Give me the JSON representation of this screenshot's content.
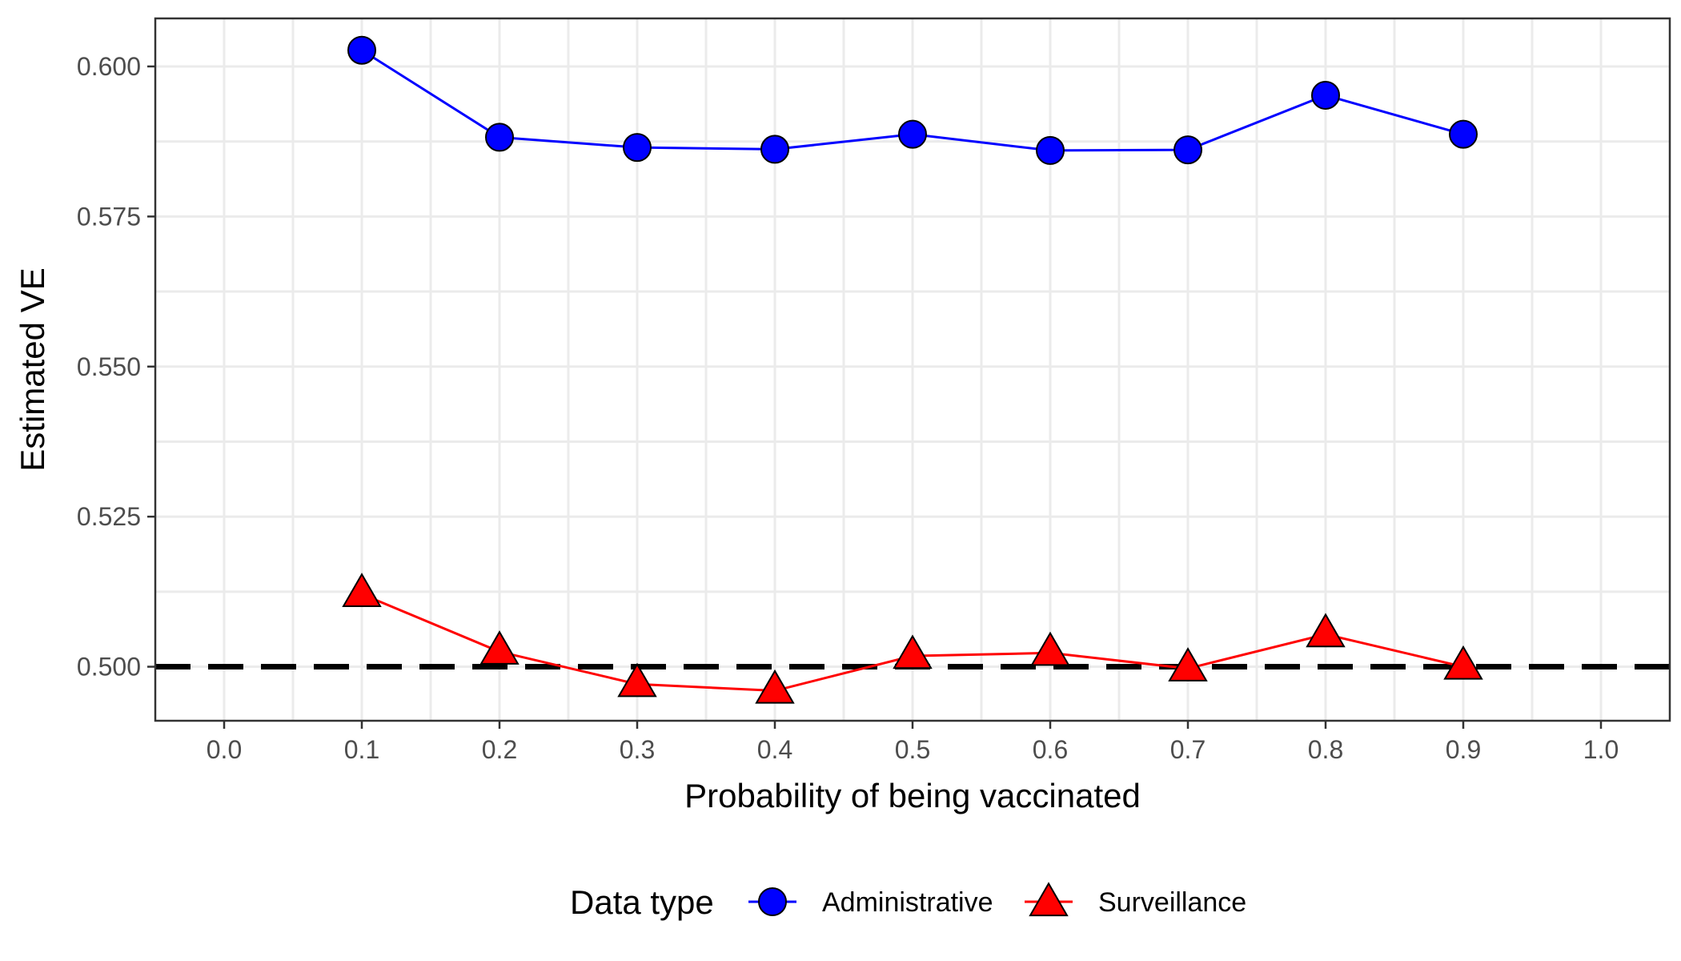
{
  "chart_data": {
    "type": "line",
    "title": "",
    "xlabel": "Probability of being vaccinated",
    "ylabel": "Estimated VE",
    "xlim": [
      -0.05,
      1.05
    ],
    "ylim": [
      0.491,
      0.608
    ],
    "x_ticks": [
      "0.0",
      "0.1",
      "0.2",
      "0.3",
      "0.4",
      "0.5",
      "0.6",
      "0.7",
      "0.8",
      "0.9",
      "1.0"
    ],
    "y_ticks": [
      "0.500",
      "0.525",
      "0.550",
      "0.575",
      "0.600"
    ],
    "grid": true,
    "reference_line": {
      "y": 0.5,
      "style": "dashed",
      "color": "#000000"
    },
    "legend": {
      "title": "Data type",
      "position": "bottom"
    },
    "series": [
      {
        "name": "Administrative",
        "color": "#0000ff",
        "marker": "circle",
        "x": [
          0.1,
          0.2,
          0.3,
          0.4,
          0.5,
          0.6,
          0.7,
          0.8,
          0.9
        ],
        "values": [
          0.6027,
          0.5882,
          0.5865,
          0.5862,
          0.5887,
          0.586,
          0.5861,
          0.5952,
          0.5887
        ]
      },
      {
        "name": "Surveillance",
        "color": "#ff0000",
        "marker": "triangle",
        "x": [
          0.1,
          0.2,
          0.3,
          0.4,
          0.5,
          0.6,
          0.7,
          0.8,
          0.9
        ],
        "values": [
          0.5121,
          0.5025,
          0.4971,
          0.496,
          0.5018,
          0.5023,
          0.4997,
          0.5054,
          0.5
        ]
      }
    ]
  }
}
